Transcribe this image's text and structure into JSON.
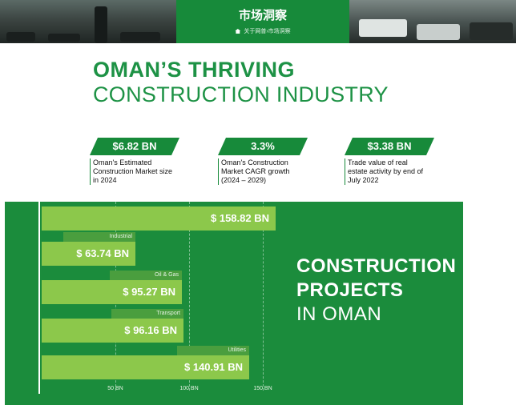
{
  "banner": {
    "title": "市场洞察",
    "breadcrumb": "关于网普›市场洞察"
  },
  "headline": {
    "line1": "OMAN’S THRIVING",
    "line2": "CONSTRUCTION INDUSTRY"
  },
  "stats": [
    {
      "value": "$6.82 BN",
      "desc": "Oman's Estimated Construction Market size in 2024"
    },
    {
      "value": "3.3%",
      "desc": "Oman's Construction Market CAGR growth (2024 – 2029)"
    },
    {
      "value": "$3.38 BN",
      "desc": "Trade value of real estate activity by end of July 2022"
    }
  ],
  "chart_data": {
    "type": "bar",
    "orientation": "horizontal",
    "categories": [
      "",
      "Industrial",
      "Oil & Gas",
      "Transport",
      "Utilities"
    ],
    "values": [
      158.82,
      63.74,
      95.27,
      96.16,
      140.91
    ],
    "value_labels": [
      "$ 158.82 BN",
      "$ 63.74 BN",
      "$ 95.27 BN",
      "$ 96.16 BN",
      "$ 140.91 BN"
    ],
    "x_ticks": [
      50,
      100,
      150
    ],
    "x_tick_labels": [
      "50 BN",
      "100 BN",
      "150 BN"
    ],
    "xlim": [
      0,
      158.82
    ],
    "bar_color": "#8cc84b",
    "background": "#1b8c3c",
    "title_lines": [
      "CONSTRUCTION",
      "PROJECTS",
      "IN OMAN"
    ]
  }
}
